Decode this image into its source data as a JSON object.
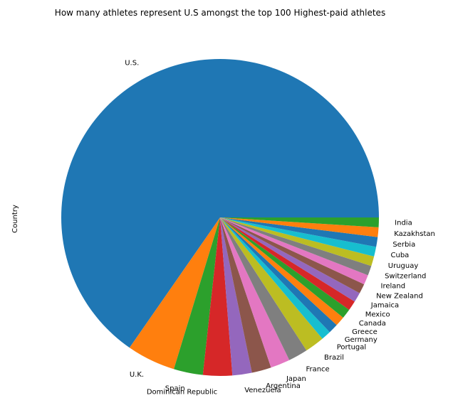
{
  "chart_data": {
    "type": "pie",
    "title": "How many athletes represent U.S amongst the top 100 Highest-paid athletes",
    "ylabel": "Country",
    "xlabel": "",
    "start_angle_deg": 0,
    "direction": "counterclockwise",
    "categories": [
      "U.S.",
      "U.K.",
      "Spain",
      "Dominican Republic",
      "Venezuela",
      "Argentina",
      "Japan",
      "France",
      "Brazil",
      "Portugal",
      "Germany",
      "Greece",
      "Canada",
      "Mexico",
      "Jamaica",
      "New Zealand",
      "Ireland",
      "Switzerland",
      "Uruguay",
      "Cuba",
      "Serbia",
      "Kazakhstan",
      "India"
    ],
    "values": [
      66,
      5,
      3,
      3,
      2,
      2,
      2,
      2,
      2,
      1,
      1,
      1,
      1,
      1,
      1,
      1,
      1,
      1,
      1,
      1,
      1,
      1,
      1
    ],
    "colors": [
      "#1f77b4",
      "#ff7f0e",
      "#2ca02c",
      "#d62728",
      "#9467bd",
      "#8c564b",
      "#e377c2",
      "#7f7f7f",
      "#bcbd22",
      "#17becf",
      "#1f77b4",
      "#ff7f0e",
      "#2ca02c",
      "#d62728",
      "#9467bd",
      "#8c564b",
      "#e377c2",
      "#7f7f7f",
      "#bcbd22",
      "#17becf",
      "#1f77b4",
      "#ff7f0e",
      "#2ca02c"
    ]
  }
}
